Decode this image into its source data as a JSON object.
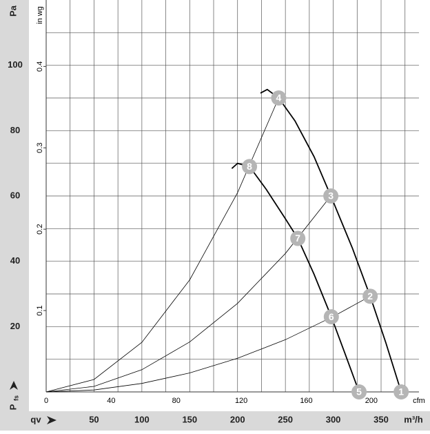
{
  "chart_data": {
    "type": "line",
    "y_label": "Pa",
    "y2_label": "in wg",
    "x_label": "m³/h",
    "x2_label": "cfm",
    "y_symbol": "P",
    "y_symbol_sub": "fs",
    "x_symbol": "qv",
    "xlim": [
      0,
      389.6
    ],
    "xticks": [
      50,
      100,
      150,
      200,
      250,
      300,
      350
    ],
    "x2lim": [
      0,
      229.3
    ],
    "x2ticks": [
      0,
      40,
      80,
      120,
      160,
      200
    ],
    "ylim": [
      0,
      120
    ],
    "yticks": [
      20,
      40,
      60,
      80,
      100
    ],
    "y2lim": [
      0,
      0.4817
    ],
    "y2ticks": [
      0.1,
      0.2,
      0.3,
      0.4
    ],
    "x_grid": [
      25,
      50,
      75,
      100,
      125,
      150,
      175,
      200,
      225,
      250,
      275,
      300,
      325,
      350,
      375
    ],
    "y_grid": [
      10,
      20,
      30,
      40,
      50,
      60,
      70,
      80,
      90,
      100,
      110
    ],
    "grid": true,
    "fan_curves": [
      {
        "x": [
          224,
          231,
          243,
          260,
          280,
          297.5,
          320,
          338.6,
          355,
          371
        ],
        "y": [
          91.5,
          92.6,
          90,
          83,
          72,
          60,
          44,
          29.3,
          15,
          0
        ],
        "color": "#000000"
      },
      {
        "x": [
          194,
          200,
          212.5,
          230,
          250,
          263,
          280,
          298,
          312,
          327
        ],
        "y": [
          68.4,
          70,
          69,
          62,
          53,
          47,
          36,
          23,
          12,
          0
        ],
        "color": "#000000"
      }
    ],
    "system_curves": [
      {
        "x": [
          0,
          50,
          100,
          150,
          200,
          243
        ],
        "y": [
          0,
          3.8,
          15.2,
          34.3,
          61,
          90
        ],
        "color": "#000000"
      },
      {
        "x": [
          0,
          50,
          100,
          150,
          200,
          250,
          297.5
        ],
        "y": [
          0,
          1.7,
          6.8,
          15.3,
          27.1,
          42.4,
          60
        ],
        "color": "#000000"
      },
      {
        "x": [
          0,
          50,
          100,
          150,
          200,
          250,
          300,
          338.6
        ],
        "y": [
          0,
          0.6,
          2.6,
          5.8,
          10.3,
          16,
          23.1,
          29.3
        ],
        "color": "#000000"
      }
    ],
    "points": [
      {
        "label": "1",
        "x": 371,
        "y": 0
      },
      {
        "label": "2",
        "x": 338.6,
        "y": 29.3
      },
      {
        "label": "3",
        "x": 297.5,
        "y": 60
      },
      {
        "label": "4",
        "x": 243,
        "y": 90
      },
      {
        "label": "5",
        "x": 327,
        "y": 0
      },
      {
        "label": "6",
        "x": 298,
        "y": 23
      },
      {
        "label": "7",
        "x": 263,
        "y": 47
      },
      {
        "label": "8",
        "x": 212.5,
        "y": 69
      }
    ],
    "point_color": "#b5b5b5"
  }
}
